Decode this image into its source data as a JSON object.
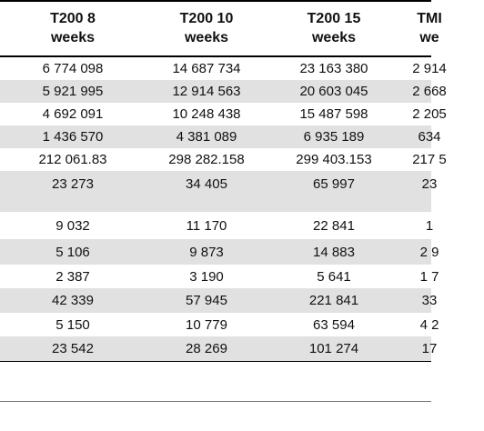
{
  "headers": [
    "T200 8\nweeks",
    "T200 10\nweeks",
    "T200 15\nweeks",
    "TMI\nwe"
  ],
  "rows": [
    [
      "6 774 098",
      "14 687 734",
      "23 163 380",
      "2 914"
    ],
    [
      "5 921 995",
      "12 914 563",
      "20 603 045",
      "2 668"
    ],
    [
      "4 692 091",
      "10 248 438",
      "15 487 598",
      "2 205"
    ],
    [
      "1 436 570",
      "4 381 089",
      "6 935 189",
      "634"
    ],
    [
      "212 061.83",
      "298 282.158",
      "299 403.153",
      "217 5"
    ],
    [
      "23 273",
      "34 405",
      "65 997",
      "23"
    ],
    [
      "9 032",
      "11 170",
      "22 841",
      "1"
    ],
    [
      "5 106",
      "9 873",
      "14 883",
      "2 9"
    ],
    [
      "2 387",
      "3 190",
      "5 641",
      "1 7"
    ],
    [
      "42 339",
      "57 945",
      "221 841",
      "33"
    ],
    [
      "5 150",
      "10 779",
      "63 594",
      "4 2"
    ],
    [
      "23 542",
      "28 269",
      "101 274",
      "17"
    ]
  ]
}
